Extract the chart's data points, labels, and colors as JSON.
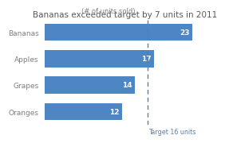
{
  "title": "Bananas exceeded target by 7 units in 2011",
  "subtitle": "(# of units sold)",
  "categories": [
    "Oranges",
    "Grapes",
    "Apples",
    "Bananas"
  ],
  "values": [
    12,
    14,
    17,
    23
  ],
  "bar_color": "#4E86C4",
  "value_label_color": "#FFFFFF",
  "bar_label_color": "#7F7F7F",
  "target_value": 16,
  "target_label": "Target 16 units",
  "target_line_color": "#5B7FA6",
  "xlim": [
    0,
    25
  ],
  "title_fontsize": 7.5,
  "subtitle_fontsize": 6.0,
  "label_fontsize": 6.5,
  "value_fontsize": 6.5,
  "target_fontsize": 5.8,
  "background_color": "#FFFFFF"
}
